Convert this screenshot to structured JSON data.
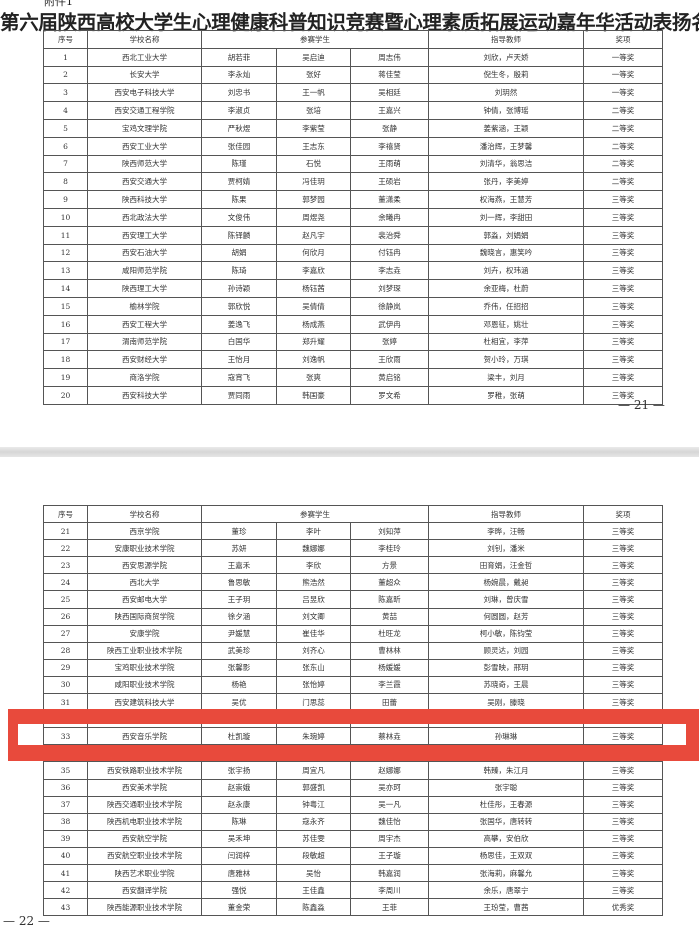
{
  "attachment_label": "附件1",
  "title": "第六届陕西高校大学生心理健康科普知识竞赛暨心理素质拓展运动嘉年华活动表扬名单",
  "headers": {
    "no": "序号",
    "school": "学校名称",
    "students": "参赛学生",
    "teachers": "指导教师",
    "award": "奖项"
  },
  "page1": {
    "page_number": "— 21 —",
    "rows": [
      [
        "1",
        "西北工业大学",
        "胡若菲",
        "吴启迪",
        "周志伟",
        "刘欣，卢天娇",
        "一等奖"
      ],
      [
        "2",
        "长安大学",
        "李永灿",
        "张好",
        "蒋佳莹",
        "倪生冬，殷莉",
        "一等奖"
      ],
      [
        "3",
        "西安电子科技大学",
        "刘忠书",
        "王一帆",
        "吴相廷",
        "刘玥然",
        "一等奖"
      ],
      [
        "4",
        "西安交通工程学院",
        "李淑贞",
        "张培",
        "王嘉兴",
        "钟倩，张博瑶",
        "二等奖"
      ],
      [
        "5",
        "宝鸡文理学院",
        "严秋煜",
        "李紫莹",
        "张静",
        "姜紫涵，王颖",
        "二等奖"
      ],
      [
        "6",
        "西安工业大学",
        "张佳园",
        "王志东",
        "李禧贤",
        "潘治辉，王梦馨",
        "二等奖"
      ],
      [
        "7",
        "陕西师范大学",
        "陈瑾",
        "石悦",
        "王雨萌",
        "刘清华，翁思洁",
        "二等奖"
      ],
      [
        "8",
        "西安交通大学",
        "贾柯婧",
        "冯佳玥",
        "王硕岩",
        "张丹，李美婷",
        "二等奖"
      ],
      [
        "9",
        "陕西科技大学",
        "陈果",
        "郭梦园",
        "董潇柔",
        "权海燕，王慧芳",
        "三等奖"
      ],
      [
        "10",
        "西北政法大学",
        "文俊伟",
        "周煜尧",
        "余曦冉",
        "刘一辉，李甜田",
        "三等奖"
      ],
      [
        "11",
        "西安理工大学",
        "陈铎麟",
        "赵凡宇",
        "裴治舜",
        "郭淼，刘娟娟",
        "三等奖"
      ],
      [
        "12",
        "西安石油大学",
        "胡娟",
        "何欣月",
        "付钰冉",
        "魏晓言，惠笑吟",
        "三等奖"
      ],
      [
        "13",
        "咸阳师范学院",
        "陈琦",
        "李嘉欣",
        "李志垚",
        "刘卉，权玮涵",
        "三等奖"
      ],
      [
        "14",
        "陕西理工大学",
        "孙诗颖",
        "杨钰茜",
        "刘梦琛",
        "余亚梅，杜蔚",
        "三等奖"
      ],
      [
        "15",
        "榆林学院",
        "郭欣悦",
        "吴倩倩",
        "徐静岚",
        "乔伟，任招招",
        "三等奖"
      ],
      [
        "16",
        "西安工程大学",
        "姜逸飞",
        "杨成燕",
        "武伊冉",
        "邓恩征，姚壮",
        "三等奖"
      ],
      [
        "17",
        "渭南师范学院",
        "白国华",
        "郑升耀",
        "张婷",
        "杜相宜，李萍",
        "三等奖"
      ],
      [
        "18",
        "西安财经大学",
        "王怡月",
        "刘逸帆",
        "王欣雨",
        "贺小玲，万琪",
        "三等奖"
      ],
      [
        "19",
        "商洛学院",
        "寇宵飞",
        "张爽",
        "黄启铭",
        "梁丰，刘月",
        "三等奖"
      ],
      [
        "20",
        "西安科技大学",
        "贾同雨",
        "韩国豪",
        "罗文希",
        "罗稚，张萌",
        "三等奖"
      ]
    ]
  },
  "page2": {
    "page_number": "— 22 —",
    "rows": [
      [
        "21",
        "西京学院",
        "董珍",
        "李叶",
        "刘知萍",
        "李晔，汪畅",
        "三等奖"
      ],
      [
        "22",
        "安康职业技术学院",
        "苏妍",
        "魏娜娜",
        "李桂玲",
        "刘钊，潘米",
        "三等奖"
      ],
      [
        "23",
        "西安思源学院",
        "王嘉禾",
        "李欣",
        "方景",
        "田育娟，汪金哲",
        "三等奖"
      ],
      [
        "24",
        "西北大学",
        "鲁思敏",
        "熊浩然",
        "董超众",
        "杨婉晨，戴昶",
        "三等奖"
      ],
      [
        "25",
        "西安邮电大学",
        "王子玥",
        "吕昱欣",
        "陈嘉昕",
        "刘琳，曾庆雪",
        "三等奖"
      ],
      [
        "26",
        "陕西国际商贸学院",
        "徐夕涵",
        "刘文卿",
        "黄喆",
        "何圆圆，赵芳",
        "三等奖"
      ],
      [
        "27",
        "安康学院",
        "尹媛慧",
        "崔佳华",
        "杜旺龙",
        "柯小敏，陈钧莹",
        "三等奖"
      ],
      [
        "28",
        "陕西工业职业技术学院",
        "武美珍",
        "刘齐心",
        "曹林林",
        "顾灵达，刘园",
        "三等奖"
      ],
      [
        "29",
        "宝鸡职业技术学院",
        "张馨影",
        "张东山",
        "杨媛媛",
        "彭雪映，邢玥",
        "三等奖"
      ],
      [
        "30",
        "咸阳职业技术学院",
        "杨艳",
        "张怡婷",
        "李兰霞",
        "苏晓奇，王晨",
        "三等奖"
      ],
      [
        "31",
        "西安建筑科技大学",
        "吴优",
        "门思蕊",
        "田蕾",
        "吴刚，滕晓",
        "三等奖"
      ],
      null,
      [
        "33",
        "西安音乐学院",
        "杜凯璇",
        "朱琬婷",
        "蔡林垚",
        "孙琳琳",
        "三等奖"
      ],
      null,
      [
        "35",
        "西安铁路职业技术学院",
        "张宇扬",
        "周宜凡",
        "赵娜娜",
        "韩臻，朱江月",
        "三等奖"
      ],
      [
        "36",
        "西安美术学院",
        "赵崇娥",
        "郭盛凯",
        "吴亦珂",
        "张宇聪",
        "三等奖"
      ],
      [
        "37",
        "陕西交通职业技术学院",
        "赵永康",
        "钟粤江",
        "吴一凡",
        "杜佳彤，王春源",
        "三等奖"
      ],
      [
        "38",
        "陕西机电职业技术学院",
        "陈琳",
        "寇永齐",
        "魏佳怡",
        "张国华，唐转转",
        "三等奖"
      ],
      [
        "39",
        "西安航空学院",
        "吴禾坤",
        "苏佳雯",
        "周宇杰",
        "高攀，安伯欣",
        "三等奖"
      ],
      [
        "40",
        "西安航空职业技术学院",
        "闫润梓",
        "段敏超",
        "王子璇",
        "杨思佳，王双双",
        "三等奖"
      ],
      [
        "41",
        "陕西艺术职业学院",
        "唐雅林",
        "吴怡",
        "韩嘉润",
        "张海莉，麻馨允",
        "三等奖"
      ],
      [
        "42",
        "西安翻译学院",
        "强悦",
        "王佳鑫",
        "李周川",
        "余乐，唐翠宁",
        "三等奖"
      ],
      [
        "43",
        "陕西能源职业技术学院",
        "董金荣",
        "陈鑫淼",
        "王菲",
        "王玢莹，曹茜",
        "优秀奖"
      ]
    ]
  },
  "highlight_color": "#e84a3c"
}
